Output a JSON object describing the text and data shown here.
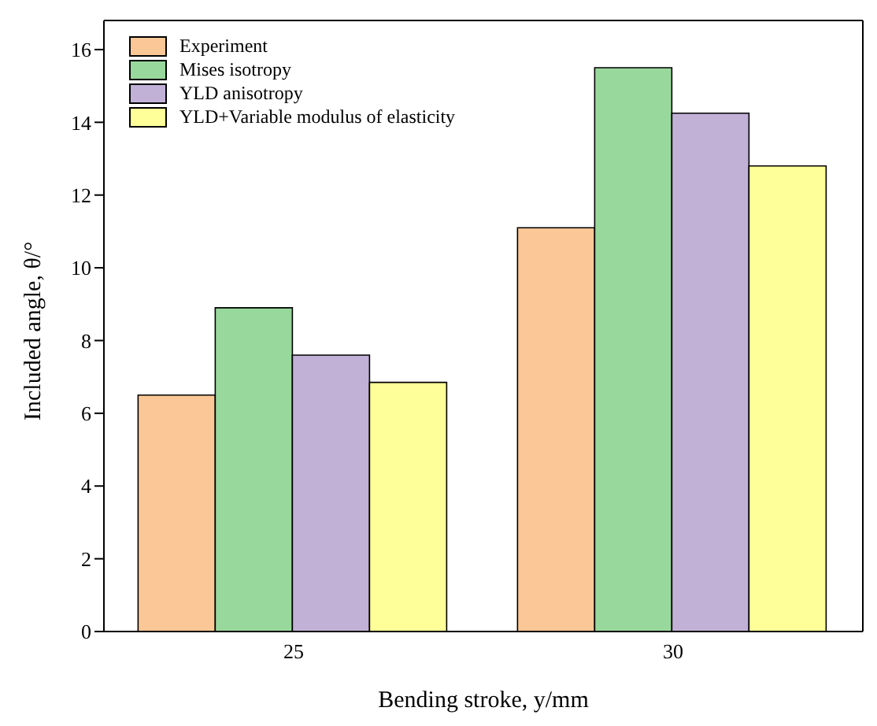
{
  "chart_data": {
    "type": "bar",
    "categories": [
      "25",
      "30"
    ],
    "xlabel": "Bending stroke, y/mm",
    "ylabel": "Included angle, θ/°",
    "series": [
      {
        "name": "Experiment",
        "color": "#fbc796",
        "values": [
          6.5,
          11.1
        ]
      },
      {
        "name": "Mises isotropy",
        "color": "#99d89c",
        "values": [
          8.9,
          15.5
        ]
      },
      {
        "name": "YLD anisotropy",
        "color": "#c1b1d6",
        "values": [
          7.6,
          14.25
        ]
      },
      {
        "name": "YLD+Variable modulus of elasticity",
        "color": "#ffff99",
        "values": [
          6.85,
          12.8
        ]
      }
    ],
    "ylim": [
      0,
      16.8
    ],
    "yticks": [
      0,
      2,
      4,
      6,
      8,
      10,
      12,
      14,
      16
    ],
    "grid": false,
    "legend": "top left"
  }
}
